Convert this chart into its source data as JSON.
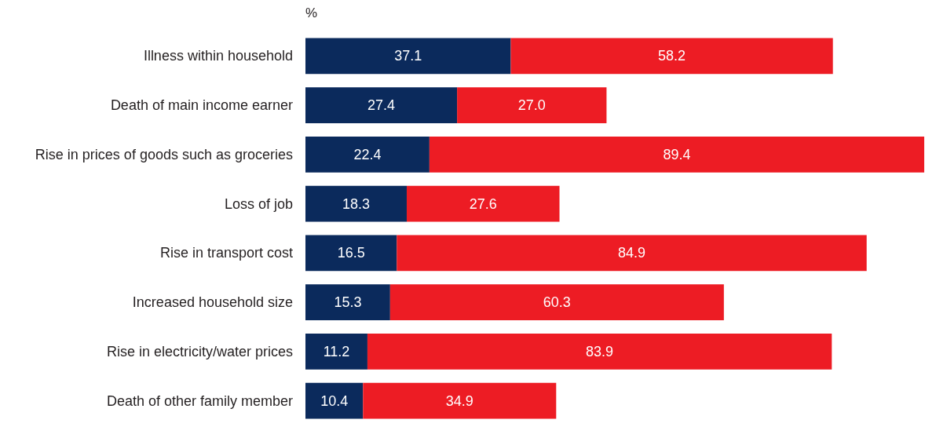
{
  "chart_data": {
    "type": "bar",
    "orientation": "horizontal",
    "stacked": true,
    "xlabel": "%",
    "categories": [
      "Illness within household",
      "Death of main income earner",
      "Rise in prices of goods such as groceries",
      "Loss of job",
      "Rise in transport cost",
      "Increased household size",
      "Rise in electricity/water prices",
      "Death of other family member"
    ],
    "series": [
      {
        "color": "#0b2a5c",
        "values": [
          37.1,
          27.4,
          22.4,
          18.3,
          16.5,
          15.3,
          11.2,
          10.4
        ],
        "value_labels": [
          "37.1",
          "27.4",
          "22.4",
          "18.3",
          "16.5",
          "15.3",
          "11.2",
          "10.4"
        ]
      },
      {
        "color": "#ed1c24",
        "values": [
          58.2,
          27.0,
          89.4,
          27.6,
          84.9,
          60.3,
          83.9,
          34.9
        ],
        "value_labels": [
          "58.2",
          "27.0",
          "89.4",
          "27.6",
          "84.9",
          "60.3",
          "83.9",
          "34.9"
        ]
      }
    ]
  }
}
